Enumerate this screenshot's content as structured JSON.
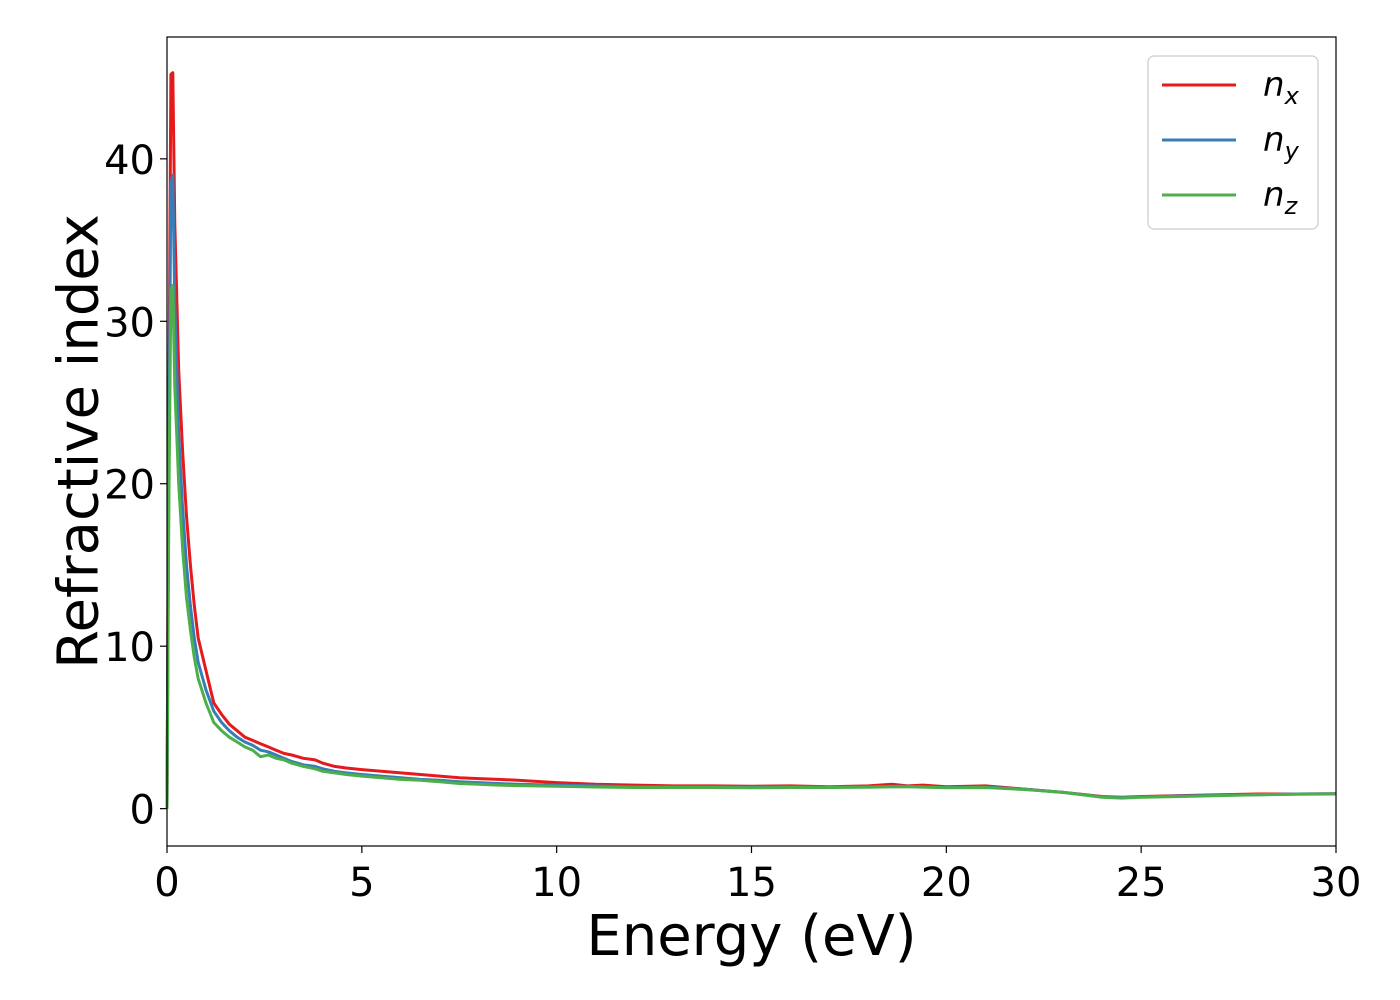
{
  "chart_data": {
    "type": "line",
    "xlabel": "Energy (eV)",
    "ylabel": "Refractive index",
    "xlim": [
      0,
      30
    ],
    "ylim": [
      -2.3,
      47.5
    ],
    "xticks": [
      0,
      5,
      10,
      15,
      20,
      25,
      30
    ],
    "yticks": [
      0,
      10,
      20,
      30,
      40
    ],
    "grid": false,
    "legend_position": "top-right",
    "series": [
      {
        "name": "n_x",
        "label_main": "n",
        "label_sub": "x",
        "color": "#e41a1c",
        "x": [
          0,
          0.05,
          0.1,
          0.15,
          0.2,
          0.3,
          0.4,
          0.5,
          0.6,
          0.7,
          0.8,
          1.0,
          1.2,
          1.4,
          1.6,
          1.8,
          2.0,
          2.2,
          2.4,
          2.6,
          2.8,
          3.0,
          3.2,
          3.5,
          3.8,
          4.0,
          4.3,
          4.6,
          5.0,
          5.5,
          6.0,
          6.5,
          7.0,
          7.5,
          8.0,
          8.5,
          9.0,
          10.0,
          11.0,
          12.0,
          13.0,
          14.0,
          15.0,
          16.0,
          17.0,
          18.0,
          18.6,
          19.0,
          19.4,
          20.0,
          21.0,
          21.5,
          22.0,
          23.0,
          24.0,
          24.5,
          25.0,
          26.0,
          27.0,
          28.0,
          29.0,
          30.0
        ],
        "y": [
          0,
          25.0,
          45.2,
          45.3,
          36.0,
          27.0,
          22.0,
          18.0,
          15.0,
          12.5,
          10.5,
          8.5,
          6.5,
          5.8,
          5.2,
          4.8,
          4.4,
          4.2,
          4.0,
          3.8,
          3.6,
          3.4,
          3.3,
          3.1,
          3.0,
          2.8,
          2.6,
          2.5,
          2.4,
          2.3,
          2.2,
          2.1,
          2.0,
          1.9,
          1.85,
          1.8,
          1.75,
          1.6,
          1.5,
          1.45,
          1.4,
          1.4,
          1.38,
          1.4,
          1.35,
          1.4,
          1.5,
          1.4,
          1.45,
          1.35,
          1.4,
          1.3,
          1.2,
          1.0,
          0.75,
          0.7,
          0.75,
          0.8,
          0.85,
          0.9,
          0.9,
          0.92
        ]
      },
      {
        "name": "n_y",
        "label_main": "n",
        "label_sub": "y",
        "color": "#377eb8",
        "x": [
          0,
          0.05,
          0.1,
          0.15,
          0.2,
          0.3,
          0.4,
          0.5,
          0.6,
          0.7,
          0.8,
          1.0,
          1.2,
          1.4,
          1.6,
          1.8,
          2.0,
          2.2,
          2.4,
          2.6,
          2.8,
          3.0,
          3.2,
          3.5,
          3.8,
          4.0,
          4.3,
          4.6,
          5.0,
          5.5,
          6.0,
          6.5,
          7.0,
          7.5,
          8.0,
          8.5,
          9.0,
          10.0,
          11.0,
          12.0,
          13.0,
          14.0,
          15.0,
          16.0,
          17.0,
          18.0,
          19.0,
          20.0,
          21.0,
          22.0,
          23.0,
          24.0,
          24.5,
          25.0,
          26.0,
          27.0,
          28.0,
          29.0,
          30.0
        ],
        "y": [
          0,
          22.0,
          38.5,
          39.0,
          31.0,
          23.0,
          18.5,
          15.0,
          12.5,
          10.5,
          9.0,
          7.3,
          6.0,
          5.3,
          4.8,
          4.4,
          4.1,
          3.9,
          3.6,
          3.5,
          3.3,
          3.1,
          2.9,
          2.7,
          2.6,
          2.45,
          2.3,
          2.2,
          2.1,
          2.0,
          1.9,
          1.8,
          1.75,
          1.65,
          1.6,
          1.55,
          1.5,
          1.45,
          1.4,
          1.35,
          1.35,
          1.35,
          1.33,
          1.35,
          1.33,
          1.35,
          1.38,
          1.3,
          1.33,
          1.2,
          1.0,
          0.72,
          0.68,
          0.72,
          0.78,
          0.82,
          0.86,
          0.9,
          0.92
        ]
      },
      {
        "name": "n_z",
        "label_main": "n",
        "label_sub": "z",
        "color": "#4daf4a",
        "x": [
          0,
          0.05,
          0.1,
          0.15,
          0.2,
          0.3,
          0.4,
          0.5,
          0.6,
          0.7,
          0.8,
          1.0,
          1.2,
          1.4,
          1.6,
          1.8,
          2.0,
          2.2,
          2.4,
          2.6,
          2.8,
          3.0,
          3.2,
          3.5,
          3.8,
          4.0,
          4.3,
          4.6,
          5.0,
          5.5,
          6.0,
          6.5,
          7.0,
          7.5,
          8.0,
          8.5,
          9.0,
          10.0,
          11.0,
          12.0,
          13.0,
          14.0,
          15.0,
          16.0,
          17.0,
          18.0,
          19.0,
          20.0,
          21.0,
          22.0,
          23.0,
          24.0,
          24.5,
          25.0,
          26.0,
          27.0,
          28.0,
          29.0,
          30.0
        ],
        "y": [
          0,
          19.0,
          32.0,
          32.2,
          26.0,
          20.0,
          16.0,
          13.0,
          11.0,
          9.3,
          8.0,
          6.5,
          5.3,
          4.8,
          4.4,
          4.1,
          3.8,
          3.6,
          3.2,
          3.3,
          3.1,
          3.0,
          2.8,
          2.6,
          2.45,
          2.3,
          2.2,
          2.1,
          2.0,
          1.9,
          1.8,
          1.75,
          1.65,
          1.55,
          1.5,
          1.45,
          1.42,
          1.38,
          1.33,
          1.3,
          1.3,
          1.3,
          1.28,
          1.3,
          1.3,
          1.32,
          1.35,
          1.28,
          1.3,
          1.18,
          1.0,
          0.7,
          0.65,
          0.7,
          0.75,
          0.8,
          0.85,
          0.88,
          0.9
        ]
      }
    ]
  }
}
